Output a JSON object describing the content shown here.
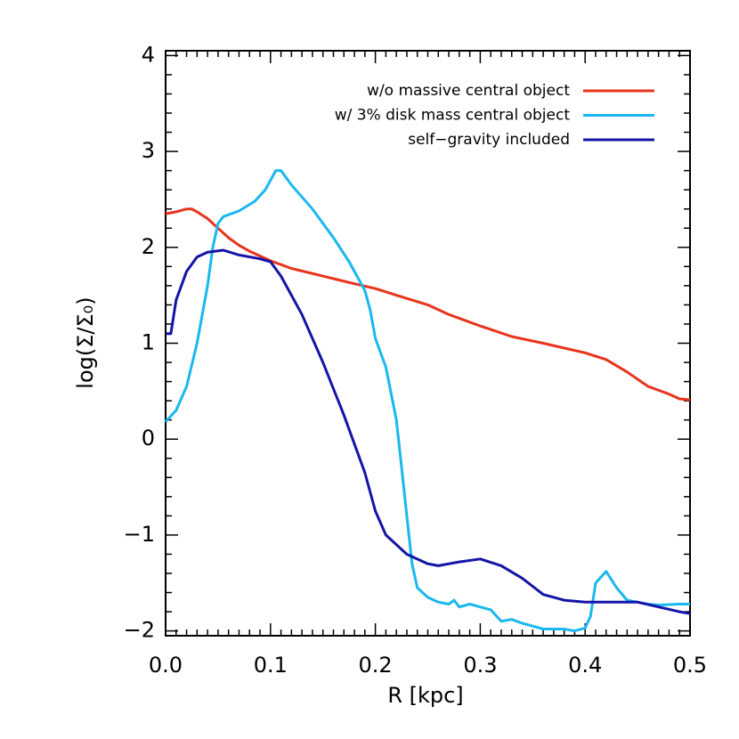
{
  "chart_data": {
    "type": "line",
    "xlabel": "R [kpc]",
    "ylabel": "log(Σ/Σ₀)",
    "xlim": [
      0,
      0.5
    ],
    "ylim": [
      -2.05,
      4.05
    ],
    "xticks": [
      {
        "value": 0,
        "label": "0.0"
      },
      {
        "value": 0.1,
        "label": "0.1"
      },
      {
        "value": 0.2,
        "label": "0.2"
      },
      {
        "value": 0.3,
        "label": "0.3"
      },
      {
        "value": 0.4,
        "label": "0.4"
      },
      {
        "value": 0.5,
        "label": "0.5"
      }
    ],
    "yticks": [
      {
        "value": -2,
        "label": "−2"
      },
      {
        "value": -1,
        "label": "−1"
      },
      0,
      1,
      2,
      3,
      4
    ],
    "legend": "upper right",
    "series": [
      {
        "name": "w/o massive central object",
        "color": "#e8341c",
        "x": [
          0,
          0.01,
          0.02,
          0.025,
          0.03,
          0.04,
          0.05,
          0.06,
          0.07,
          0.08,
          0.1,
          0.12,
          0.15,
          0.18,
          0.2,
          0.22,
          0.25,
          0.27,
          0.3,
          0.33,
          0.36,
          0.4,
          0.42,
          0.44,
          0.46,
          0.48,
          0.49,
          0.5
        ],
        "values": [
          2.35,
          2.37,
          2.4,
          2.4,
          2.37,
          2.3,
          2.2,
          2.1,
          2.02,
          1.96,
          1.86,
          1.78,
          1.7,
          1.62,
          1.57,
          1.5,
          1.4,
          1.3,
          1.18,
          1.07,
          1.0,
          0.9,
          0.83,
          0.7,
          0.55,
          0.47,
          0.42,
          0.41
        ]
      },
      {
        "name": "w/ 3% disk mass central object",
        "color": "#1ab8f0",
        "x": [
          0,
          0.01,
          0.02,
          0.03,
          0.04,
          0.045,
          0.05,
          0.055,
          0.07,
          0.085,
          0.095,
          0.105,
          0.11,
          0.12,
          0.14,
          0.16,
          0.175,
          0.185,
          0.19,
          0.195,
          0.2,
          0.21,
          0.22,
          0.225,
          0.23,
          0.235,
          0.24,
          0.25,
          0.26,
          0.27,
          0.275,
          0.28,
          0.29,
          0.3,
          0.31,
          0.32,
          0.33,
          0.34,
          0.35,
          0.36,
          0.38,
          0.39,
          0.4,
          0.405,
          0.41,
          0.42,
          0.43,
          0.44,
          0.45,
          0.46,
          0.47,
          0.49,
          0.5
        ],
        "values": [
          0.18,
          0.3,
          0.55,
          1.0,
          1.6,
          2.0,
          2.25,
          2.32,
          2.38,
          2.48,
          2.6,
          2.8,
          2.8,
          2.65,
          2.4,
          2.1,
          1.85,
          1.65,
          1.55,
          1.35,
          1.05,
          0.75,
          0.2,
          -0.3,
          -0.8,
          -1.3,
          -1.55,
          -1.65,
          -1.7,
          -1.72,
          -1.68,
          -1.75,
          -1.72,
          -1.75,
          -1.78,
          -1.9,
          -1.88,
          -1.92,
          -1.95,
          -1.98,
          -1.98,
          -2.0,
          -1.97,
          -1.85,
          -1.5,
          -1.38,
          -1.55,
          -1.68,
          -1.7,
          -1.72,
          -1.73,
          -1.72,
          -1.72
        ]
      },
      {
        "name": "self−gravity included",
        "color": "#1414a8",
        "x": [
          0,
          0.005,
          0.01,
          0.02,
          0.03,
          0.04,
          0.055,
          0.07,
          0.09,
          0.1,
          0.11,
          0.13,
          0.15,
          0.17,
          0.19,
          0.2,
          0.21,
          0.23,
          0.25,
          0.26,
          0.28,
          0.3,
          0.32,
          0.34,
          0.36,
          0.38,
          0.4,
          0.45,
          0.47,
          0.49,
          0.5
        ],
        "values": [
          1.1,
          1.1,
          1.45,
          1.75,
          1.9,
          1.95,
          1.97,
          1.92,
          1.88,
          1.85,
          1.7,
          1.3,
          0.8,
          0.25,
          -0.35,
          -0.75,
          -1.0,
          -1.2,
          -1.3,
          -1.32,
          -1.28,
          -1.25,
          -1.32,
          -1.45,
          -1.62,
          -1.68,
          -1.7,
          -1.7,
          -1.75,
          -1.8,
          -1.82
        ]
      }
    ]
  }
}
